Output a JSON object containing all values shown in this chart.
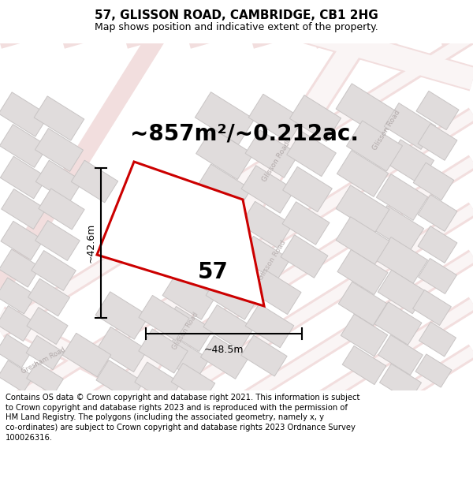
{
  "title": "57, GLISSON ROAD, CAMBRIDGE, CB1 2HG",
  "subtitle": "Map shows position and indicative extent of the property.",
  "area_text": "~857m²/~0.212ac.",
  "width_label": "~48.5m",
  "height_label": "~42.6m",
  "property_number": "57",
  "footer": "Contains OS data © Crown copyright and database right 2021. This information is subject to Crown copyright and database rights 2023 and is reproduced with the permission of HM Land Registry. The polygons (including the associated geometry, namely x, y co-ordinates) are subject to Crown copyright and database rights 2023 Ordnance Survey 100026316.",
  "map_bg": "#f7f3f3",
  "road_fill": "#f2dede",
  "road_edge": "#e8c8c8",
  "building_fill": "#e0dcdc",
  "building_edge": "#c8c4c4",
  "property_color": "#cc0000",
  "title_fontsize": 11,
  "subtitle_fontsize": 9,
  "area_fontsize": 20,
  "label_fontsize": 9,
  "footer_fontsize": 7.2,
  "number_fontsize": 20
}
